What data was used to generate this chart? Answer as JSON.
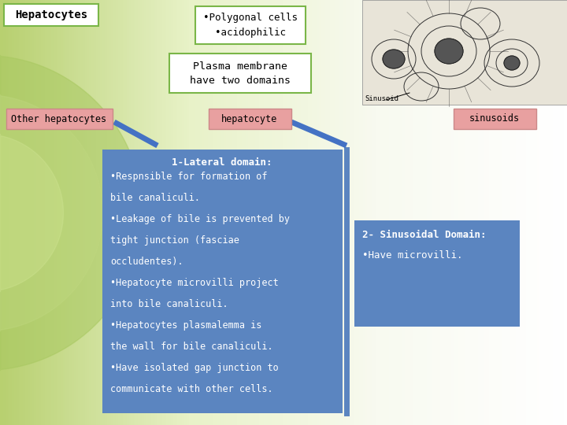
{
  "title": "Hepatocytes",
  "green_border": "#7ab648",
  "green_box1_text": "•Polygonal cells\n•acidophilic",
  "green_box2_text": "Plasma membrane\nhave two domains",
  "pink_box1_text": "Other hepatocytes",
  "pink_box2_text": "hepatocyte",
  "pink_box3_text": "sinusoids",
  "pink_color": "#e8a0a0",
  "blue_color": "#5b85c0",
  "lateral_title": "1-Lateral domain:",
  "lateral_lines": [
    "•Respnsible for formation of",
    "bile canaliculi.",
    "•Leakage of bile is prevented by",
    "tight junction (fasciae",
    "occludentes).",
    "•Hepatocyte microvilli project",
    "into bile canaliculi.",
    "•Hepatocytes plasmalemma is",
    "the wall for bile canaliculi.",
    "•Have isolated gap junction to",
    "communicate with other cells."
  ],
  "sinus_title": "2- Sinusoidal Domain:",
  "sinus_text": "•Have microvilli.",
  "sinusoid_label": "Sinusoid",
  "bg_left_color": "#c5d98a",
  "bg_mid_color": "#deeaaf",
  "bg_right_color": "#f5f8ec"
}
